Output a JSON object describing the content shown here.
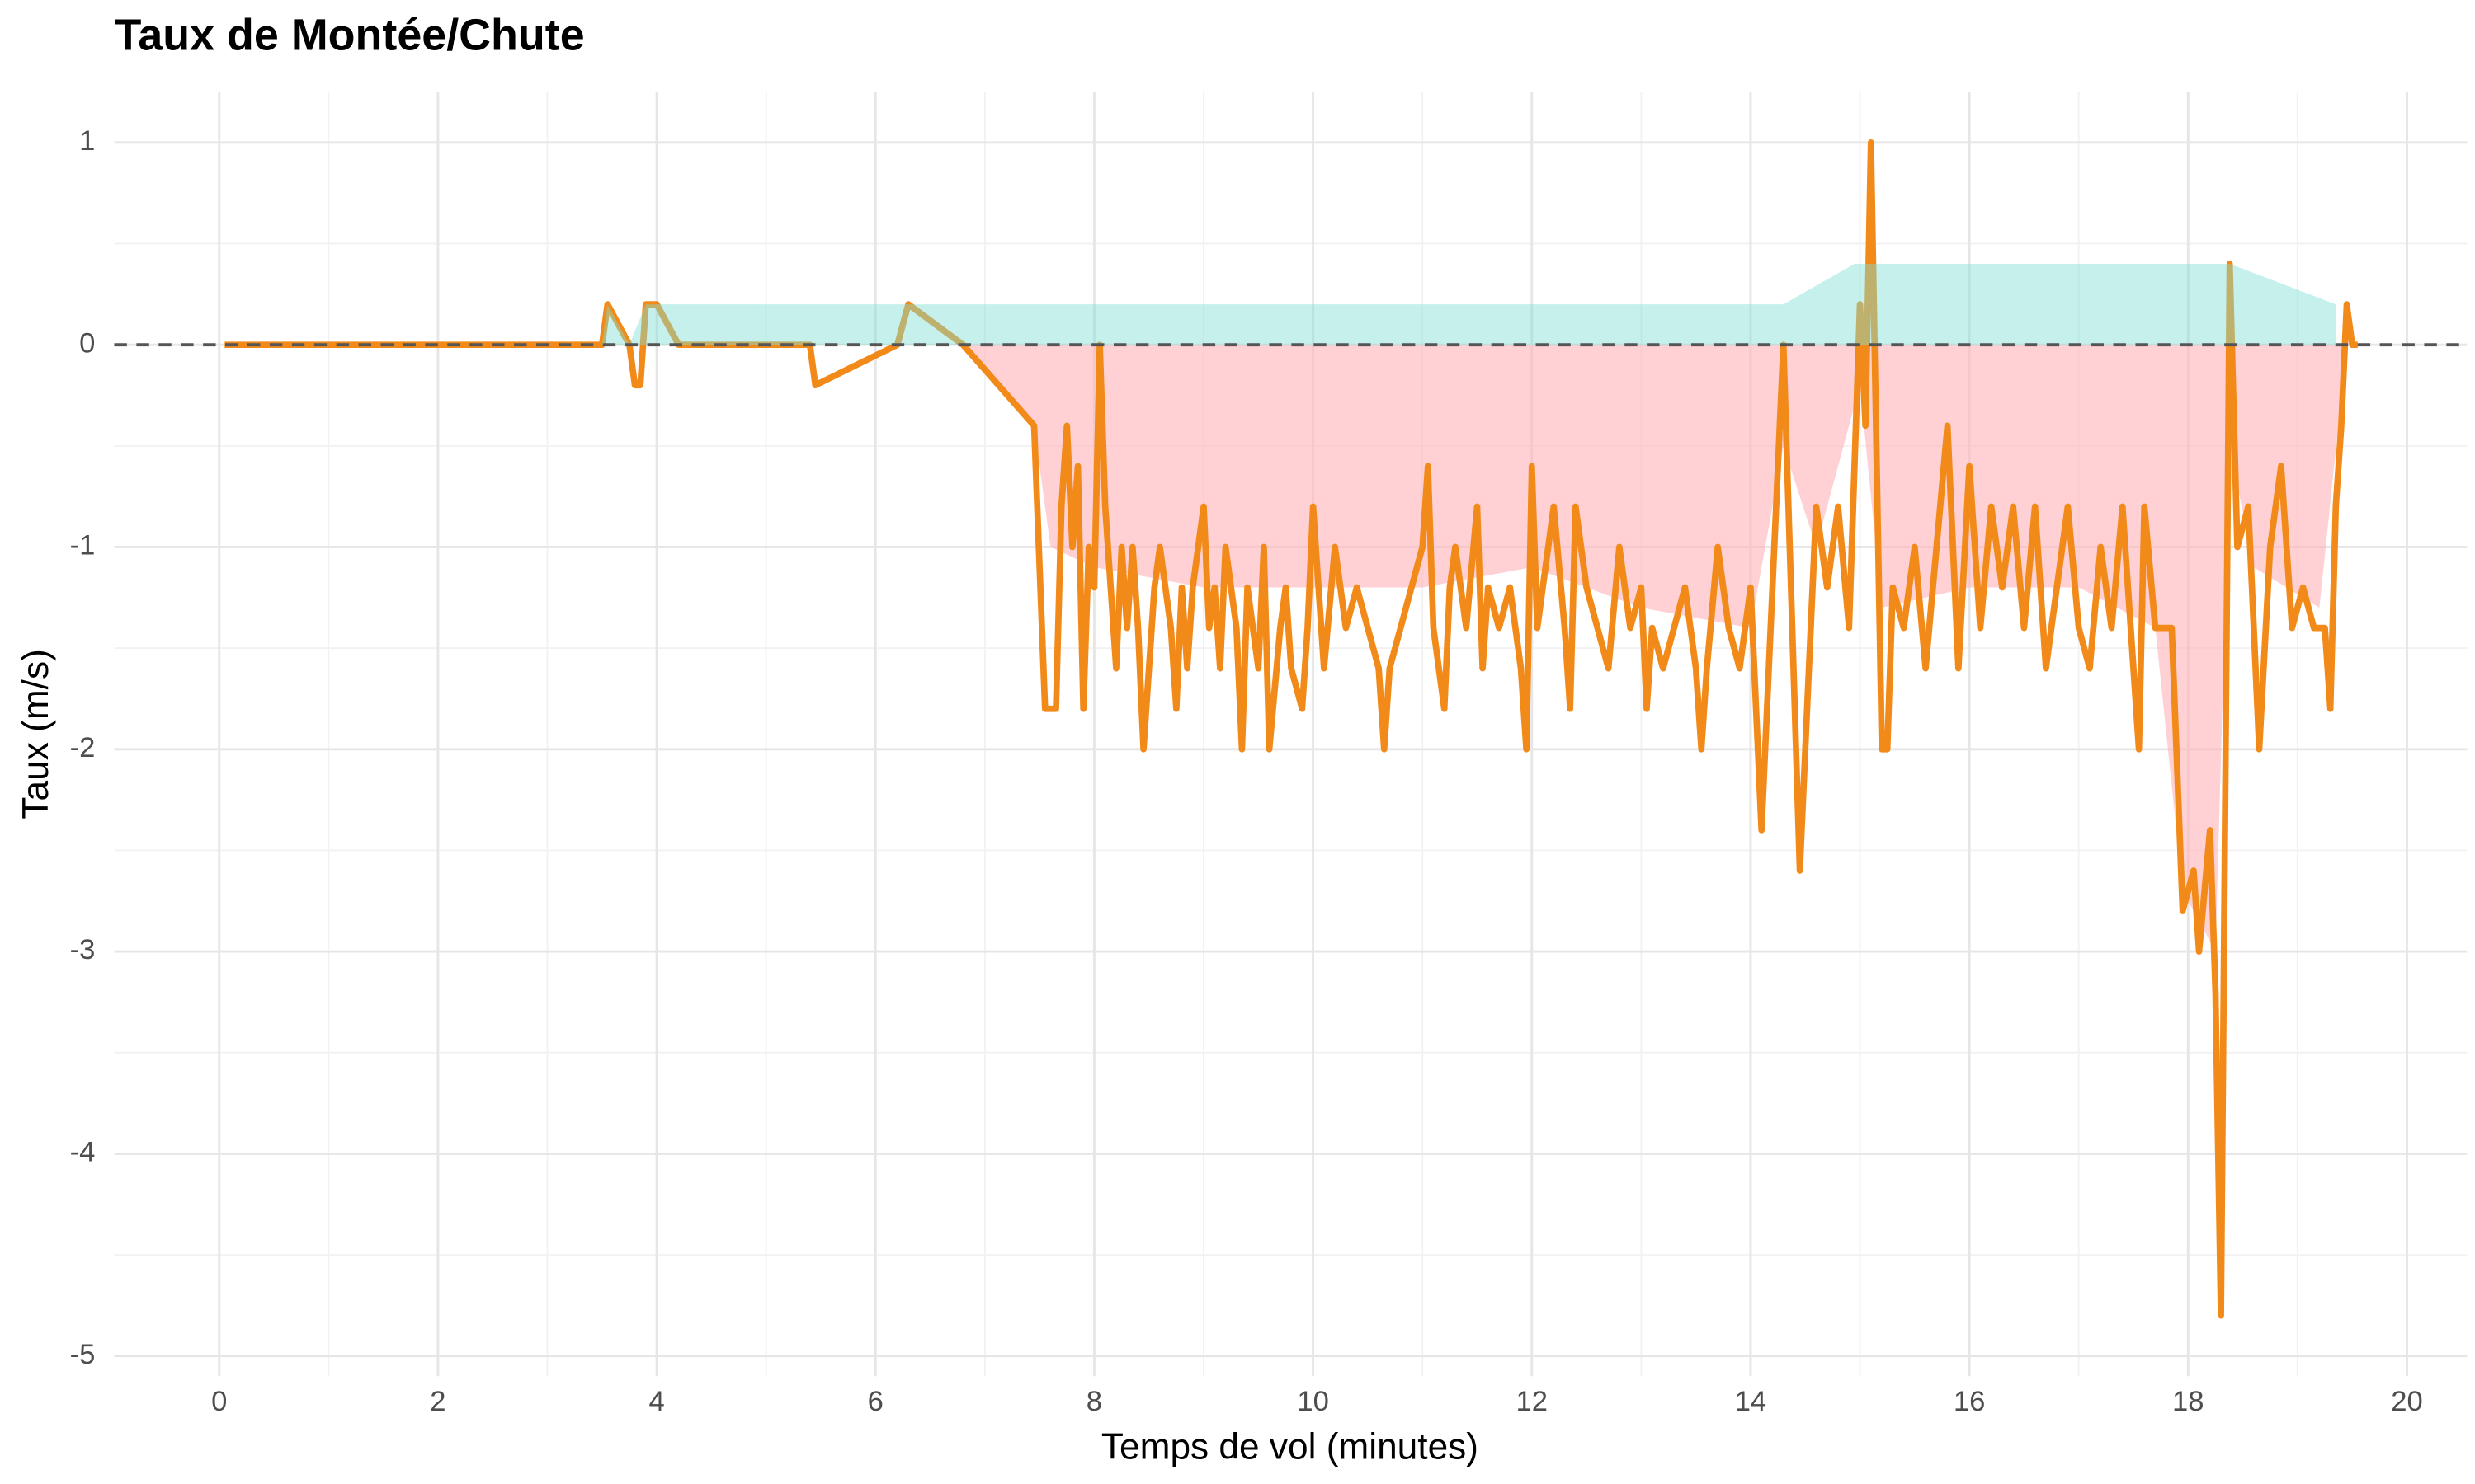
{
  "chart_data": {
    "type": "line",
    "title": "Taux de Montée/Chute",
    "xlabel": "Temps de vol (minutes)",
    "ylabel": "Taux (m/s)",
    "xlim": [
      -0.96,
      20.55
    ],
    "ylim": [
      -5.1,
      1.25
    ],
    "xticks": [
      0,
      2,
      4,
      6,
      8,
      10,
      12,
      14,
      16,
      18,
      20
    ],
    "yticks": [
      -5,
      -4,
      -3,
      -2,
      -1,
      0,
      1
    ],
    "x_minor_grid": [
      1,
      3,
      5,
      7,
      9,
      11,
      13,
      15,
      17,
      19
    ],
    "y_minor_grid": [
      -4.5,
      -3.5,
      -2.5,
      -1.5,
      -0.5,
      0.5
    ],
    "grid": true,
    "reference_line": 0,
    "series": [
      {
        "kind": "area",
        "color": "#ffb3b8",
        "opacity": 0.6,
        "x": [
          6.8,
          7.45,
          7.6,
          8.0,
          9,
          10,
          11,
          12,
          13,
          14,
          14.3,
          14.6,
          15.0,
          15.2,
          16,
          17,
          17.7,
          17.95,
          18.25,
          18.38,
          18.6,
          19.2,
          19.45
        ],
        "values": [
          0,
          -0.4,
          -1.0,
          -1.1,
          -1.2,
          -1.2,
          -1.2,
          -1.1,
          -1.3,
          -1.4,
          -0.5,
          -1.0,
          -0.2,
          -1.3,
          -1.2,
          -1.2,
          -1.4,
          -2.7,
          -3.0,
          -0.5,
          -1.1,
          -1.3,
          0
        ]
      },
      {
        "kind": "line",
        "color": "#f28a1a",
        "x": [
          0.05,
          3.5,
          3.55,
          3.75,
          3.8,
          3.85,
          3.9,
          4.0,
          4.2,
          5.4,
          5.45,
          6.2,
          6.3,
          6.8,
          7.45,
          7.55,
          7.65,
          7.7,
          7.75,
          7.8,
          7.85,
          7.9,
          7.95,
          8.0,
          8.05,
          8.1,
          8.15,
          8.2,
          8.25,
          8.3,
          8.35,
          8.4,
          8.45,
          8.5,
          8.55,
          8.6,
          8.7,
          8.75,
          8.8,
          8.85,
          8.9,
          9.0,
          9.05,
          9.1,
          9.15,
          9.2,
          9.3,
          9.35,
          9.4,
          9.5,
          9.55,
          9.6,
          9.7,
          9.75,
          9.8,
          9.9,
          9.95,
          10.0,
          10.05,
          10.1,
          10.2,
          10.3,
          10.4,
          10.5,
          10.6,
          10.65,
          10.7,
          10.8,
          10.9,
          11.0,
          11.05,
          11.1,
          11.2,
          11.25,
          11.3,
          11.4,
          11.5,
          11.55,
          11.6,
          11.7,
          11.8,
          11.9,
          11.95,
          12.0,
          12.05,
          12.1,
          12.2,
          12.3,
          12.35,
          12.4,
          12.5,
          12.6,
          12.7,
          12.8,
          12.9,
          13.0,
          13.05,
          13.1,
          13.2,
          13.3,
          13.4,
          13.5,
          13.55,
          13.6,
          13.7,
          13.8,
          13.9,
          14.0,
          14.1,
          14.3,
          14.45,
          14.6,
          14.7,
          14.8,
          14.9,
          15.0,
          15.05,
          15.1,
          15.2,
          15.25,
          15.3,
          15.4,
          15.5,
          15.6,
          15.7,
          15.8,
          15.9,
          16.0,
          16.1,
          16.2,
          16.3,
          16.4,
          16.5,
          16.6,
          16.7,
          16.8,
          16.9,
          17.0,
          17.1,
          17.2,
          17.3,
          17.4,
          17.5,
          17.55,
          17.6,
          17.7,
          17.85,
          17.95,
          18.05,
          18.1,
          18.2,
          18.25,
          18.3,
          18.38,
          18.45,
          18.55,
          18.65,
          18.75,
          18.85,
          18.95,
          19.05,
          19.15,
          19.25,
          19.3,
          19.35,
          19.4,
          19.45,
          19.5,
          19.55
        ],
        "values": [
          0,
          0,
          0.2,
          0,
          -0.2,
          -0.2,
          0.2,
          0.2,
          0,
          0,
          -0.2,
          0,
          0.2,
          0,
          -0.4,
          -1.8,
          -1.8,
          -0.8,
          -0.4,
          -1.0,
          -0.6,
          -1.8,
          -1.0,
          -1.2,
          0.0,
          -0.8,
          -1.2,
          -1.6,
          -1.0,
          -1.4,
          -1.0,
          -1.4,
          -2.0,
          -1.6,
          -1.2,
          -1.0,
          -1.4,
          -1.8,
          -1.2,
          -1.6,
          -1.2,
          -0.8,
          -1.4,
          -1.2,
          -1.6,
          -1.0,
          -1.4,
          -2.0,
          -1.2,
          -1.6,
          -1.0,
          -2.0,
          -1.4,
          -1.2,
          -1.6,
          -1.8,
          -1.4,
          -0.8,
          -1.2,
          -1.6,
          -1.0,
          -1.4,
          -1.2,
          -1.4,
          -1.6,
          -2.0,
          -1.6,
          -1.4,
          -1.2,
          -1.0,
          -0.6,
          -1.4,
          -1.8,
          -1.2,
          -1.0,
          -1.4,
          -0.8,
          -1.6,
          -1.2,
          -1.4,
          -1.2,
          -1.6,
          -2.0,
          -0.6,
          -1.4,
          -1.2,
          -0.8,
          -1.4,
          -1.8,
          -0.8,
          -1.2,
          -1.4,
          -1.6,
          -1.0,
          -1.4,
          -1.2,
          -1.8,
          -1.4,
          -1.6,
          -1.4,
          -1.2,
          -1.6,
          -2.0,
          -1.6,
          -1.0,
          -1.4,
          -1.6,
          -1.2,
          -2.4,
          0,
          -2.6,
          -0.8,
          -1.2,
          -0.8,
          -1.4,
          0.2,
          -0.4,
          1.0,
          -2.0,
          -2.0,
          -1.2,
          -1.4,
          -1.0,
          -1.6,
          -1.0,
          -0.4,
          -1.6,
          -0.6,
          -1.4,
          -0.8,
          -1.2,
          -0.8,
          -1.4,
          -0.8,
          -1.6,
          -1.2,
          -0.8,
          -1.4,
          -1.6,
          -1.0,
          -1.4,
          -0.8,
          -1.6,
          -2.0,
          -0.8,
          -1.4,
          -1.4,
          -2.8,
          -2.6,
          -3.0,
          -2.4,
          -3.2,
          -4.8,
          0.4,
          -1.0,
          -0.8,
          -2.0,
          -1.0,
          -0.6,
          -1.4,
          -1.2,
          -1.4,
          -1.4,
          -1.8,
          -0.8,
          -0.4,
          0.2,
          0,
          0
        ]
      },
      {
        "kind": "area",
        "color": "#7fddd3",
        "opacity": 0.45,
        "x": [
          3.5,
          3.55,
          3.75,
          3.9,
          14.3,
          14.95,
          18.38,
          19.35
        ],
        "values": [
          0,
          0.2,
          0,
          0.2,
          0.2,
          0.4,
          0.4,
          0.2
        ]
      }
    ]
  }
}
